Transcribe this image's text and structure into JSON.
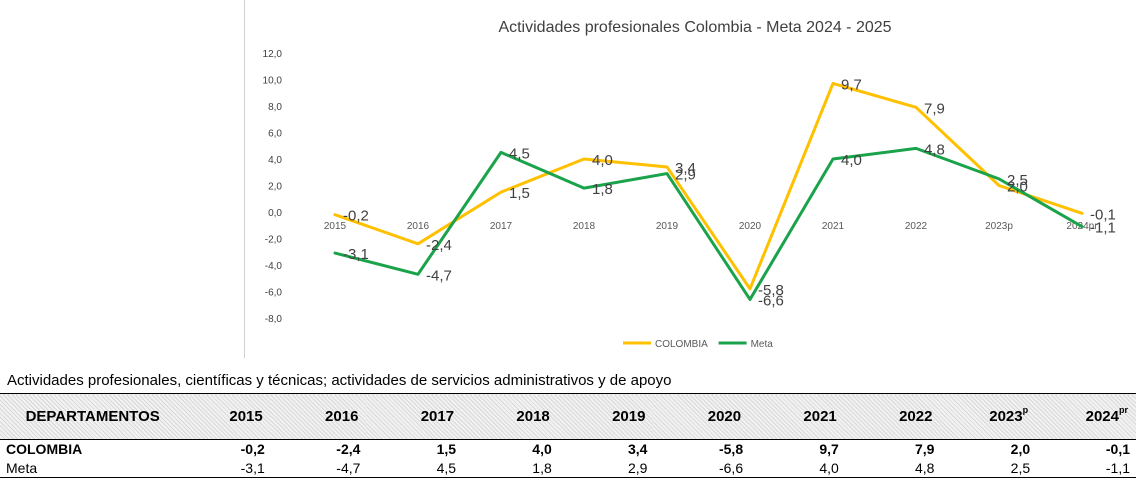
{
  "table": {
    "caption": "Actividades profesionales, científicas y técnicas; actividades de servicios administrativos y de apoyo",
    "header_first": "DEPARTAMENTOS",
    "headers": [
      {
        "base": "2015",
        "sup": ""
      },
      {
        "base": "2016",
        "sup": ""
      },
      {
        "base": "2017",
        "sup": ""
      },
      {
        "base": "2018",
        "sup": ""
      },
      {
        "base": "2019",
        "sup": ""
      },
      {
        "base": "2020",
        "sup": ""
      },
      {
        "base": "2021",
        "sup": ""
      },
      {
        "base": "2022",
        "sup": ""
      },
      {
        "base": "2023",
        "sup": "p"
      },
      {
        "base": "2024",
        "sup": "pr"
      }
    ],
    "rows": [
      {
        "name": "COLOMBIA",
        "cells": [
          "-0,2",
          "-2,4",
          "1,5",
          "4,0",
          "3,4",
          "-5,8",
          "9,7",
          "7,9",
          "2,0",
          "-0,1"
        ]
      },
      {
        "name": "Meta",
        "cells": [
          "-3,1",
          "-4,7",
          "4,5",
          "1,8",
          "2,9",
          "-6,6",
          "4,0",
          "4,8",
          "2,5",
          "-1,1"
        ]
      }
    ]
  },
  "chart_data": {
    "type": "line",
    "title": "Actividades profesionales Colombia - Meta 2024 - 2025",
    "categories": [
      "2015",
      "2016",
      "2017",
      "2018",
      "2019",
      "2020",
      "2021",
      "2022",
      "2023p",
      "2024pr"
    ],
    "y_ticks": [
      "12,0",
      "10,0",
      "8,0",
      "6,0",
      "4,0",
      "2,0",
      "0,0",
      "-2,0",
      "-4,0",
      "-6,0",
      "-8,0"
    ],
    "ylim": [
      -8,
      12
    ],
    "legend_position": "bottom",
    "series": [
      {
        "name": "COLOMBIA",
        "color": "#FFC000",
        "values": [
          -0.2,
          -2.4,
          1.5,
          4.0,
          3.4,
          -5.8,
          9.7,
          7.9,
          2.0,
          -0.1
        ],
        "labels": [
          "-0,2",
          "-2,4",
          "1,5",
          "4,0",
          "3,4",
          "-5,8",
          "9,7",
          "7,9",
          "2,0",
          "-0,1"
        ]
      },
      {
        "name": "Meta",
        "color": "#1AA34A",
        "values": [
          -3.1,
          -4.7,
          4.5,
          1.8,
          2.9,
          -6.6,
          4.0,
          4.8,
          2.5,
          -1.1
        ],
        "labels": [
          "-3,1",
          "-4,7",
          "4,5",
          "1,8",
          "2,9",
          "-6,6",
          "4,0",
          "4,8",
          "2,5",
          "-1,1"
        ]
      }
    ]
  }
}
